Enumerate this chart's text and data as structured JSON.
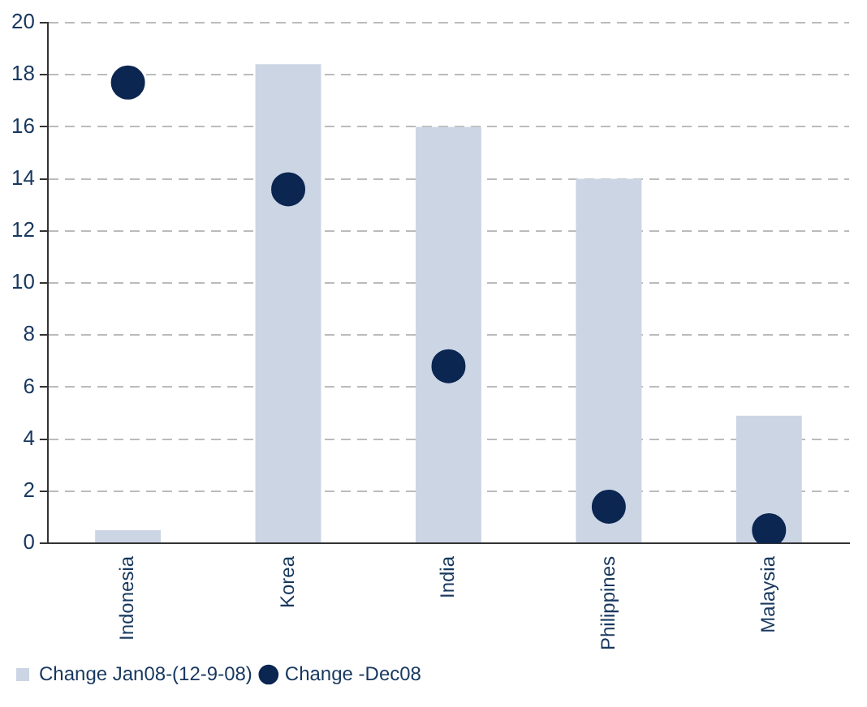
{
  "chart_data": {
    "type": "bar",
    "categories": [
      "Indonesia",
      "Korea",
      "India",
      "Philippines",
      "Malaysia"
    ],
    "series": [
      {
        "name": "Change Jan08-(12-9-08)",
        "type": "bar",
        "color": "#cbd5e4",
        "values": [
          0.5,
          18.4,
          16.0,
          14.0,
          4.9
        ]
      },
      {
        "name": "Change -Dec08",
        "type": "scatter",
        "color": "#0c2652",
        "marker": "circle",
        "x": [
          "Indonesia",
          "Korea",
          "India",
          "Philippines",
          "Malaysia"
        ],
        "values": [
          17.7,
          13.6,
          6.8,
          1.4,
          0.5
        ]
      }
    ],
    "ylim": [
      0,
      20
    ],
    "yticks": [
      0,
      2,
      4,
      6,
      8,
      10,
      12,
      14,
      16,
      18,
      20
    ],
    "grid": "y",
    "legend": "bottom"
  }
}
